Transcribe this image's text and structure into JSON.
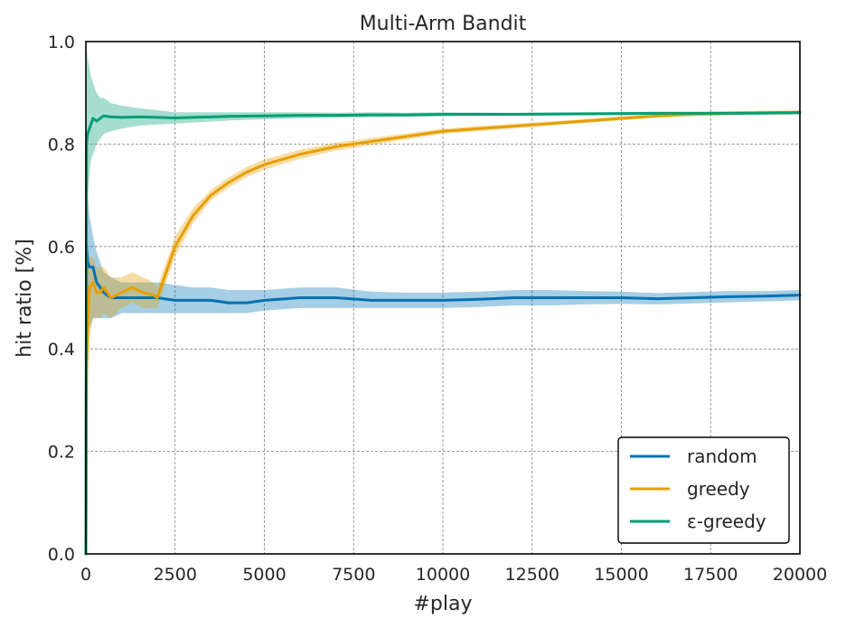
{
  "chart_data": {
    "type": "line",
    "title": "Multi-Arm Bandit",
    "xlabel": "#play",
    "ylabel": "hit ratio [%]",
    "xlim": [
      0,
      20000
    ],
    "ylim": [
      0.0,
      1.0
    ],
    "xticks": [
      0,
      2500,
      5000,
      7500,
      10000,
      12500,
      15000,
      17500,
      20000
    ],
    "xtick_labels": [
      "0",
      "2500",
      "5000",
      "7500",
      "10000",
      "12500",
      "15000",
      "17500",
      "20000"
    ],
    "yticks": [
      0.0,
      0.2,
      0.4,
      0.6,
      0.8,
      1.0
    ],
    "ytick_labels": [
      "0.0",
      "0.2",
      "0.4",
      "0.6",
      "0.8",
      "1.0"
    ],
    "grid": true,
    "legend_position": "bottom-right",
    "series": [
      {
        "name": "random",
        "color": "#0072b2",
        "x": [
          0,
          20,
          50,
          100,
          200,
          300,
          400,
          500,
          700,
          1000,
          1500,
          2000,
          2500,
          3000,
          3500,
          4000,
          4500,
          5000,
          6000,
          7000,
          8000,
          9000,
          10000,
          11000,
          12000,
          13000,
          14000,
          15000,
          16000,
          17000,
          18000,
          19000,
          20000
        ],
        "y": [
          0.0,
          0.6,
          0.57,
          0.56,
          0.56,
          0.53,
          0.52,
          0.51,
          0.5,
          0.5,
          0.5,
          0.5,
          0.495,
          0.495,
          0.495,
          0.49,
          0.49,
          0.495,
          0.5,
          0.5,
          0.495,
          0.495,
          0.495,
          0.497,
          0.5,
          0.5,
          0.5,
          0.5,
          0.498,
          0.5,
          0.502,
          0.503,
          0.505
        ],
        "lower": [
          0.0,
          0.4,
          0.42,
          0.44,
          0.46,
          0.46,
          0.46,
          0.46,
          0.46,
          0.47,
          0.47,
          0.47,
          0.47,
          0.47,
          0.47,
          0.47,
          0.47,
          0.475,
          0.48,
          0.48,
          0.48,
          0.48,
          0.48,
          0.482,
          0.485,
          0.485,
          0.487,
          0.488,
          0.487,
          0.489,
          0.491,
          0.493,
          0.495
        ],
        "upper": [
          0.0,
          0.75,
          0.7,
          0.66,
          0.62,
          0.59,
          0.57,
          0.55,
          0.54,
          0.53,
          0.53,
          0.53,
          0.525,
          0.52,
          0.52,
          0.515,
          0.515,
          0.515,
          0.52,
          0.52,
          0.512,
          0.51,
          0.51,
          0.512,
          0.515,
          0.515,
          0.513,
          0.512,
          0.509,
          0.511,
          0.513,
          0.513,
          0.515
        ]
      },
      {
        "name": "greedy",
        "color": "#e69f00",
        "x": [
          0,
          20,
          50,
          100,
          200,
          300,
          400,
          500,
          700,
          1000,
          1300,
          1600,
          1900,
          2000,
          2100,
          2300,
          2500,
          3000,
          3500,
          4000,
          4500,
          5000,
          6000,
          7000,
          8000,
          9000,
          10000,
          11000,
          12000,
          13000,
          14000,
          15000,
          16000,
          17000,
          18000,
          19000,
          20000
        ],
        "y": [
          0.0,
          0.35,
          0.45,
          0.52,
          0.53,
          0.51,
          0.51,
          0.52,
          0.5,
          0.51,
          0.52,
          0.51,
          0.505,
          0.5,
          0.52,
          0.56,
          0.6,
          0.66,
          0.7,
          0.725,
          0.745,
          0.76,
          0.78,
          0.795,
          0.805,
          0.815,
          0.825,
          0.83,
          0.835,
          0.84,
          0.845,
          0.85,
          0.855,
          0.858,
          0.86,
          0.861,
          0.862
        ],
        "lower": [
          0.0,
          0.2,
          0.35,
          0.42,
          0.46,
          0.46,
          0.46,
          0.47,
          0.46,
          0.48,
          0.49,
          0.48,
          0.48,
          0.48,
          0.5,
          0.54,
          0.58,
          0.645,
          0.69,
          0.715,
          0.735,
          0.75,
          0.771,
          0.787,
          0.798,
          0.809,
          0.82,
          0.825,
          0.83,
          0.836,
          0.841,
          0.846,
          0.851,
          0.854,
          0.856,
          0.857,
          0.858
        ],
        "upper": [
          0.0,
          0.6,
          0.57,
          0.58,
          0.58,
          0.56,
          0.56,
          0.56,
          0.54,
          0.54,
          0.55,
          0.54,
          0.53,
          0.52,
          0.54,
          0.58,
          0.62,
          0.675,
          0.71,
          0.735,
          0.755,
          0.77,
          0.789,
          0.803,
          0.812,
          0.821,
          0.83,
          0.835,
          0.84,
          0.844,
          0.849,
          0.854,
          0.859,
          0.862,
          0.864,
          0.865,
          0.866
        ]
      },
      {
        "name": "ε-greedy",
        "color": "#009e73",
        "x": [
          0,
          20,
          50,
          100,
          150,
          200,
          300,
          400,
          500,
          700,
          1000,
          1500,
          2000,
          2500,
          3000,
          3500,
          4000,
          5000,
          6000,
          7000,
          8000,
          9000,
          10000,
          12000,
          14000,
          16000,
          18000,
          20000
        ],
        "y": [
          0.0,
          0.8,
          0.82,
          0.83,
          0.84,
          0.85,
          0.845,
          0.85,
          0.855,
          0.853,
          0.852,
          0.853,
          0.852,
          0.851,
          0.852,
          0.853,
          0.854,
          0.855,
          0.856,
          0.856,
          0.857,
          0.857,
          0.858,
          0.858,
          0.859,
          0.86,
          0.86,
          0.861
        ],
        "lower": [
          0.0,
          0.6,
          0.7,
          0.74,
          0.77,
          0.78,
          0.8,
          0.81,
          0.82,
          0.825,
          0.83,
          0.836,
          0.838,
          0.84,
          0.842,
          0.844,
          0.846,
          0.848,
          0.85,
          0.851,
          0.852,
          0.853,
          0.854,
          0.855,
          0.856,
          0.857,
          0.857,
          0.858
        ],
        "upper": [
          0.0,
          1.0,
          0.97,
          0.95,
          0.93,
          0.92,
          0.9,
          0.89,
          0.89,
          0.88,
          0.875,
          0.87,
          0.866,
          0.862,
          0.862,
          0.862,
          0.862,
          0.862,
          0.862,
          0.861,
          0.862,
          0.861,
          0.862,
          0.861,
          0.862,
          0.863,
          0.863,
          0.864
        ]
      }
    ]
  }
}
